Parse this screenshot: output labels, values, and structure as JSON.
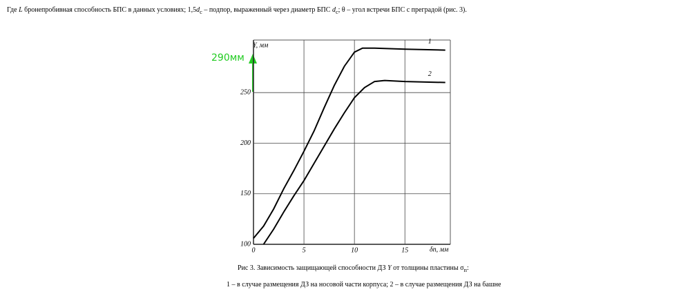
{
  "header": [
    "Где ",
    "L",
    " бронепробивная способность БПС в данных условиях; 1,5",
    "d",
    "c",
    " – подпор, выраженный через диаметр БПС ",
    "d",
    "c",
    "; θ – угол встречи БПС с преградой (рис. 3)."
  ],
  "chart_data": {
    "type": "line",
    "ylabel": "Y, мм",
    "xlabel": "δп, мм",
    "xlim": [
      0,
      19.5
    ],
    "ylim": [
      100,
      302
    ],
    "xticks": [
      0,
      5,
      10,
      15
    ],
    "yticks": [
      100,
      150,
      200,
      250
    ],
    "grid": true,
    "annotation": "290мм",
    "series": [
      {
        "name": "1",
        "color": "#000000",
        "x": [
          0,
          1,
          2,
          3,
          4,
          5,
          6,
          7,
          8,
          9,
          10,
          10.8,
          12,
          15,
          19
        ],
        "values": [
          106,
          118,
          135,
          155,
          173,
          192,
          212,
          235,
          257,
          276,
          290,
          294,
          294,
          293,
          292
        ]
      },
      {
        "name": "2",
        "color": "#000000",
        "x": [
          1,
          2,
          3,
          4,
          5,
          6,
          7,
          8,
          9,
          10,
          11,
          12,
          13,
          15,
          19
        ],
        "values": [
          100,
          115,
          132,
          148,
          163,
          180,
          197,
          214,
          230,
          245,
          255,
          261,
          262,
          261,
          260
        ]
      }
    ]
  },
  "caption": [
    "Рис 3. Зависимость защищающей способности ДЗ ",
    "Y",
    " от толщины пластины σ",
    "п",
    ":"
  ],
  "caption2": "1 – в случае размещения ДЗ на носовой части корпуса; 2 – в случае размещения ДЗ на башне"
}
